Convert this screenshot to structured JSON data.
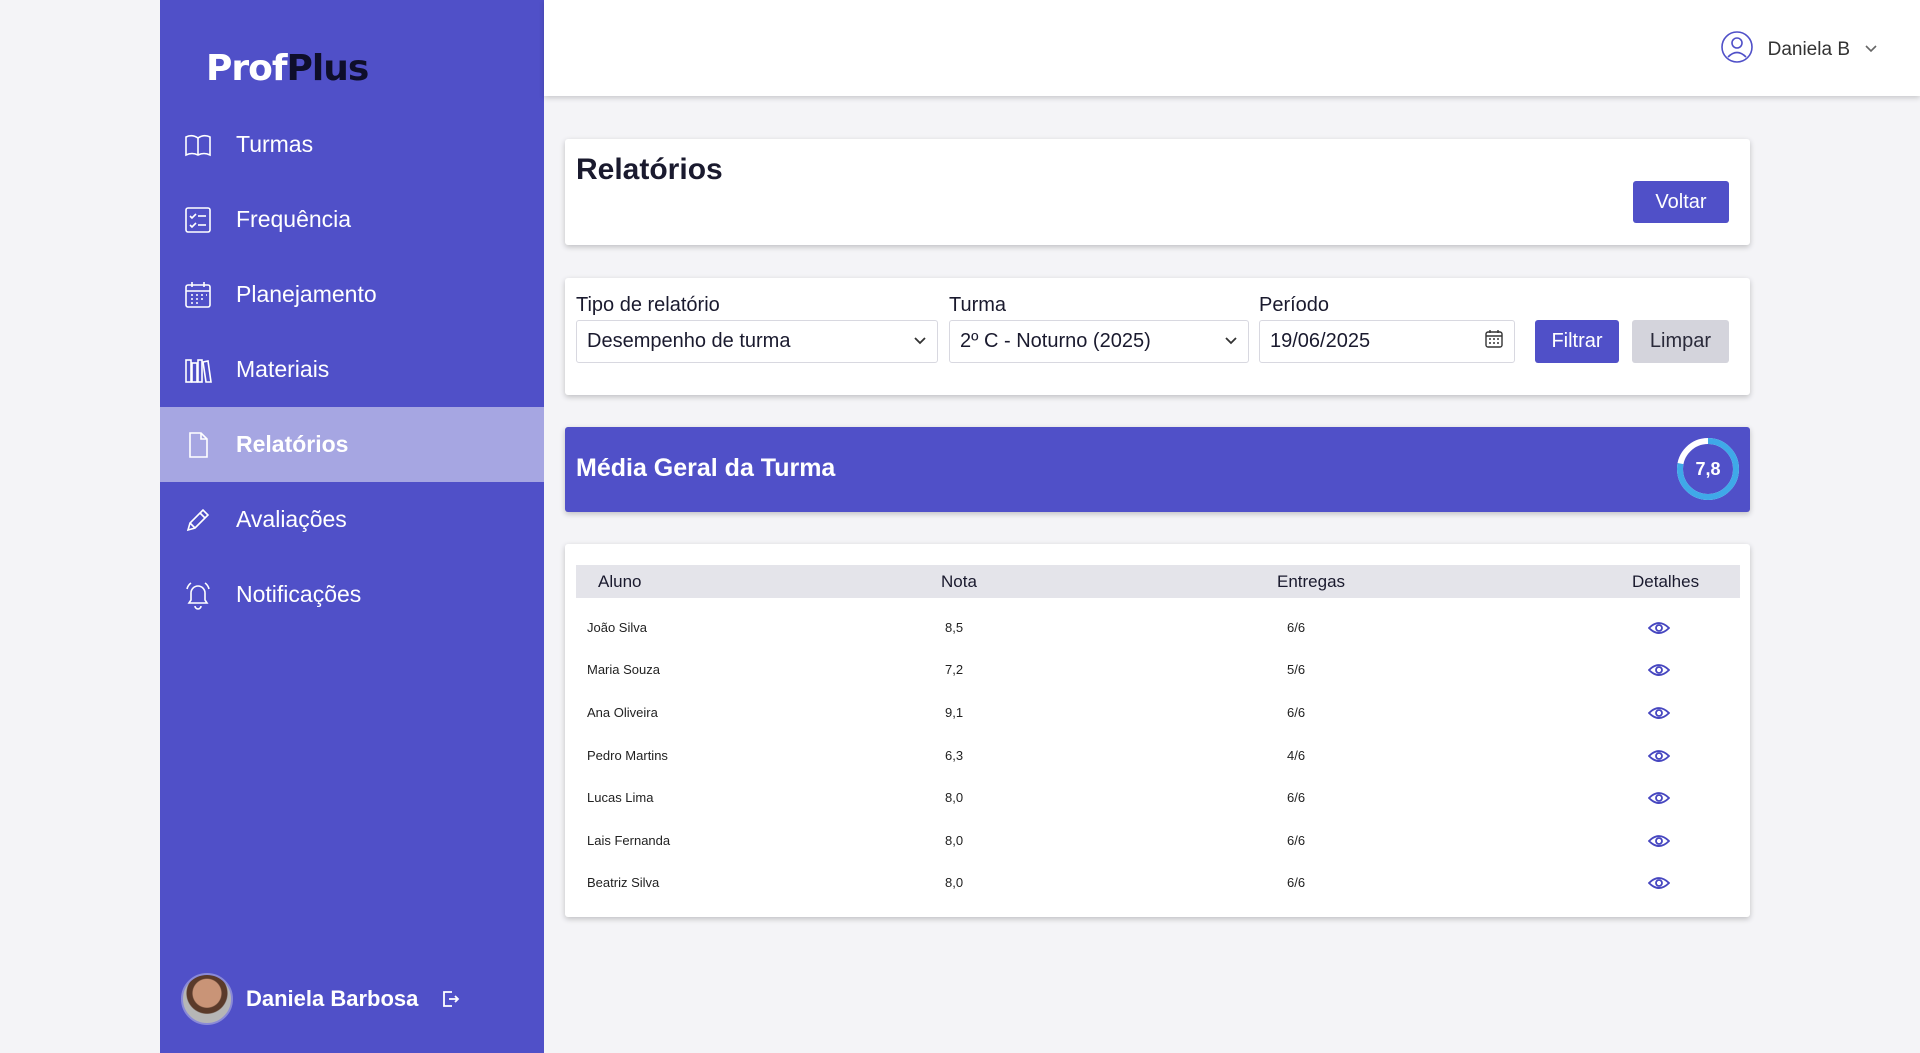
{
  "app": {
    "logo_part1": "Prof",
    "logo_part2": "Plus",
    "brand_color": "#5050c8"
  },
  "sidebar": {
    "items": [
      {
        "label": "Turmas",
        "icon": "book-icon"
      },
      {
        "label": "Frequência",
        "icon": "checklist-icon"
      },
      {
        "label": "Planejamento",
        "icon": "calendar-icon"
      },
      {
        "label": "Materiais",
        "icon": "library-icon"
      },
      {
        "label": "Relatórios",
        "icon": "document-icon",
        "active": true
      },
      {
        "label": "Avaliações",
        "icon": "pencil-icon"
      },
      {
        "label": "Notificações",
        "icon": "bell-icon"
      }
    ],
    "user_name": "Daniela Barbosa"
  },
  "topbar": {
    "user_name": "Daniela B"
  },
  "page": {
    "title": "Relatórios",
    "back_label": "Voltar"
  },
  "filters": {
    "report_type_label": "Tipo de relatório",
    "report_type_value": "Desempenho de turma",
    "class_label": "Turma",
    "class_value": "2º C - Noturno (2025)",
    "period_label": "Período",
    "period_value": "19/06/2025",
    "filter_label": "Filtrar",
    "clear_label": "Limpar"
  },
  "average": {
    "title": "Média Geral da Turma",
    "value": "7,8",
    "fraction": 0.78
  },
  "table": {
    "headers": [
      "Aluno",
      "Nota",
      "Entregas",
      "Detalhes"
    ],
    "rows": [
      {
        "name": "João Silva",
        "grade": "8,5",
        "deliveries": "6/6"
      },
      {
        "name": "Maria Souza",
        "grade": "7,2",
        "deliveries": "5/6"
      },
      {
        "name": "Ana Oliveira",
        "grade": "9,1",
        "deliveries": "6/6"
      },
      {
        "name": "Pedro Martins",
        "grade": "6,3",
        "deliveries": "4/6"
      },
      {
        "name": "Lucas Lima",
        "grade": "8,0",
        "deliveries": "6/6"
      },
      {
        "name": "Lais Fernanda",
        "grade": "8,0",
        "deliveries": "6/6"
      },
      {
        "name": "Beatriz Silva",
        "grade": "8,0",
        "deliveries": "6/6"
      }
    ]
  }
}
